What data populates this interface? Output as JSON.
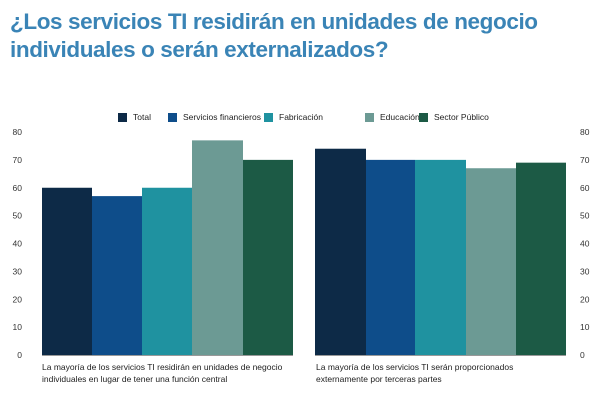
{
  "title": "¿Los servicios TI residirán en unidades de negocio individuales o serán externalizados?",
  "colors": {
    "Total": "#0d2a47",
    "Servicios financieros": "#0e4d8a",
    "Fabricación": "#1f92a0",
    "Educación": "#6c9a94",
    "Sector Público": "#1c5a45",
    "title": "#3a84b6"
  },
  "legend": [
    "Total",
    "Servicios financieros",
    "Fabricación",
    "Educación",
    "Sector Público"
  ],
  "chart_data": [
    {
      "type": "bar",
      "categories": [
        "Total",
        "Servicios financieros",
        "Fabricación",
        "Educación",
        "Sector Público"
      ],
      "values": [
        60,
        57,
        60,
        77,
        70
      ],
      "ylim": [
        0,
        80
      ],
      "yticks": [
        "0",
        "10",
        "20",
        "30",
        "40",
        "50",
        "60",
        "70",
        "80"
      ],
      "caption": "La mayoría de los servicios TI residirán en unidades de negocio individuales en lugar de tener una función central"
    },
    {
      "type": "bar",
      "categories": [
        "Total",
        "Servicios financieros",
        "Fabricación",
        "Educación",
        "Sector Público"
      ],
      "values": [
        74,
        70,
        70,
        67,
        69
      ],
      "ylim": [
        0,
        80
      ],
      "yticks": [
        "0",
        "10",
        "20",
        "30",
        "40",
        "50",
        "60",
        "70",
        "80"
      ],
      "caption": "La mayoría de los servicios TI serán proporcionados externamente por terceras partes"
    }
  ]
}
